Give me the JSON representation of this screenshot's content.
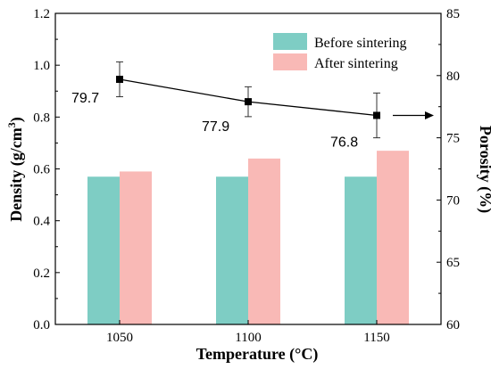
{
  "chart_data": {
    "type": "bar",
    "categories": [
      "1050",
      "1100",
      "1150"
    ],
    "xlabel": "Temperature (°C)",
    "ylabel": "Density (g/cm³)",
    "ylabel_parts": {
      "main": "Density (g/cm",
      "sup": "3",
      "tail": ")"
    },
    "y2label": "Porosity (%)",
    "ylim": [
      0,
      1.2
    ],
    "y2lim": [
      60,
      85
    ],
    "yticks": [
      "0.0",
      "0.2",
      "0.4",
      "0.6",
      "0.8",
      "1.0",
      "1.2"
    ],
    "y2ticks": [
      "60",
      "65",
      "70",
      "75",
      "80",
      "85"
    ],
    "series": [
      {
        "name": "Before sintering",
        "axis": "left",
        "kind": "bar",
        "color": "#7ecdc4",
        "values": [
          0.57,
          0.57,
          0.57
        ]
      },
      {
        "name": "After sintering",
        "axis": "left",
        "kind": "bar",
        "color": "#f9b9b6",
        "values": [
          0.59,
          0.64,
          0.67
        ]
      },
      {
        "name": "Porosity",
        "axis": "right",
        "kind": "line",
        "color": "#000000",
        "values": [
          79.7,
          77.9,
          76.8
        ],
        "errors": [
          1.4,
          1.2,
          1.8
        ],
        "value_labels": [
          "79.7",
          "77.9",
          "76.8"
        ]
      }
    ],
    "legend": {
      "placement": "top-right"
    },
    "grid": false,
    "annotation": "arrow pointing to right axis"
  }
}
